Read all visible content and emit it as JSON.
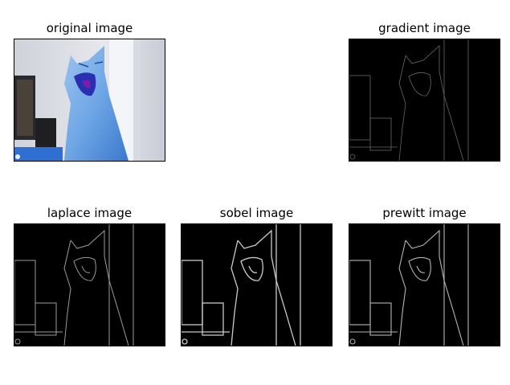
{
  "figure": {
    "panels": [
      {
        "id": "original",
        "title": "original image",
        "kind": "color"
      },
      {
        "id": "gradient",
        "title": "gradient image",
        "kind": "edge-faint"
      },
      {
        "id": "laplace",
        "title": "laplace image",
        "kind": "edge"
      },
      {
        "id": "sobel",
        "title": "sobel image",
        "kind": "edge-strong"
      },
      {
        "id": "prewitt",
        "title": "prewitt image",
        "kind": "edge"
      }
    ]
  }
}
